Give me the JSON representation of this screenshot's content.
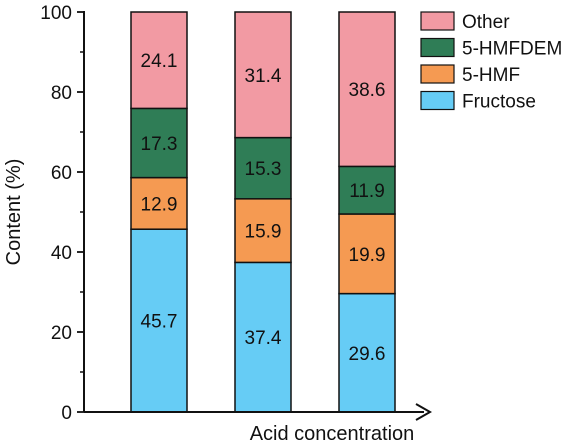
{
  "chart_data": {
    "type": "bar",
    "stacked": true,
    "categories": [
      "",
      "",
      ""
    ],
    "series": [
      {
        "name": "Fructose",
        "values": [
          45.7,
          37.4,
          29.6
        ],
        "color": "#66ccf5"
      },
      {
        "name": "5-HMF",
        "values": [
          12.9,
          15.9,
          19.9
        ],
        "color": "#f59a52"
      },
      {
        "name": "5-HMFDEM",
        "values": [
          17.3,
          15.3,
          11.9
        ],
        "color": "#2f7d56"
      },
      {
        "name": "Other",
        "values": [
          24.1,
          31.4,
          38.6
        ],
        "color": "#f29aa3"
      }
    ],
    "xlabel": "Acid concentration",
    "ylabel": "Content (%)",
    "ylim": [
      0,
      100
    ],
    "yticks": [
      0,
      20,
      40,
      60,
      80,
      100
    ],
    "x_axis_arrow": true,
    "grid": false,
    "legend": {
      "placement": "top-right",
      "order": [
        "Other",
        "5-HMFDEM",
        "5-HMF",
        "Fructose"
      ]
    }
  }
}
